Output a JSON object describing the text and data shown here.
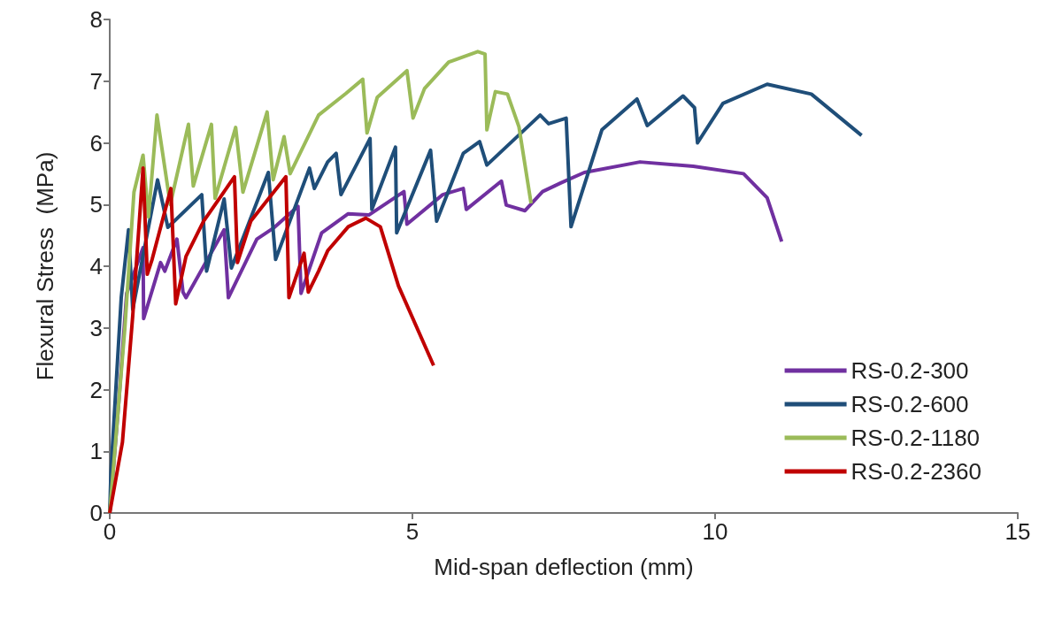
{
  "chart_data": {
    "type": "line",
    "xlabel": "Mid-span deflection (mm)",
    "ylabel": "Flexural Stress  (MPa)",
    "xlim": [
      0,
      15
    ],
    "xticks": [
      0,
      5,
      10,
      15
    ],
    "ylim": [
      0,
      8
    ],
    "yticks": [
      0,
      1,
      2,
      3,
      4,
      5,
      6,
      7,
      8
    ],
    "grid": false,
    "legend": "bottom right",
    "marker": "none",
    "line_style": "solid",
    "series": [
      {
        "name": "RS-0.2-300",
        "color": "#7030a0",
        "x": [
          0,
          0.15,
          0.28,
          0.55,
          0.56,
          0.84,
          0.91,
          1.11,
          1.21,
          1.26,
          1.89,
          1.96,
          2.43,
          2.72,
          3.11,
          3.16,
          3.5,
          3.94,
          4.28,
          4.86,
          4.91,
          5.5,
          5.84,
          5.89,
          6.47,
          6.55,
          6.86,
          7.15,
          7.45,
          7.84,
          8.76,
          9.64,
          10.47,
          10.86,
          11.1
        ],
        "values": [
          0,
          1.8,
          3.56,
          4.3,
          3.15,
          4.06,
          3.92,
          4.44,
          3.58,
          3.49,
          4.59,
          3.49,
          4.44,
          4.63,
          4.97,
          3.56,
          4.54,
          4.85,
          4.83,
          5.21,
          4.68,
          5.16,
          5.26,
          4.92,
          5.38,
          4.99,
          4.9,
          5.21,
          5.35,
          5.52,
          5.69,
          5.62,
          5.5,
          5.11,
          4.4
        ]
      },
      {
        "name": "RS-0.2-600",
        "color": "#1f4e79",
        "x": [
          0,
          0.02,
          0.19,
          0.31,
          0.38,
          0.79,
          0.96,
          1.52,
          1.6,
          1.89,
          2.01,
          2.62,
          2.74,
          3.3,
          3.38,
          3.6,
          3.74,
          3.82,
          4.3,
          4.33,
          4.72,
          4.74,
          5.3,
          5.4,
          5.84,
          6.11,
          6.23,
          7.11,
          7.25,
          7.54,
          7.62,
          8.13,
          8.71,
          8.88,
          9.47,
          9.66,
          9.71,
          10.13,
          10.86,
          11.59,
          12.42
        ],
        "values": [
          0,
          0.67,
          3.49,
          4.59,
          3.3,
          5.4,
          4.63,
          5.16,
          3.92,
          5.09,
          3.97,
          5.52,
          4.11,
          5.59,
          5.26,
          5.69,
          5.83,
          5.16,
          6.07,
          4.92,
          5.93,
          4.54,
          5.88,
          4.73,
          5.83,
          6.02,
          5.64,
          6.45,
          6.31,
          6.4,
          4.64,
          6.21,
          6.71,
          6.28,
          6.76,
          6.57,
          6,
          6.64,
          6.95,
          6.79,
          6.12
        ]
      },
      {
        "name": "RS-0.2-1180",
        "color": "#9bbb59",
        "x": [
          0,
          0.25,
          0.4,
          0.55,
          0.64,
          0.78,
          1.0,
          1.3,
          1.38,
          1.68,
          1.74,
          2.08,
          2.2,
          2.6,
          2.7,
          2.88,
          2.98,
          3.45,
          3.9,
          4.18,
          4.25,
          4.42,
          4.91,
          5.01,
          5.2,
          5.6,
          6.08,
          6.2,
          6.23,
          6.37,
          6.57,
          6.76,
          6.96
        ],
        "values": [
          0,
          3,
          5.2,
          5.8,
          4.8,
          6.45,
          5,
          6.3,
          5.3,
          6.3,
          5.1,
          6.25,
          5.2,
          6.5,
          5.4,
          6.1,
          5.5,
          6.45,
          6.8,
          7.03,
          6.16,
          6.74,
          7.17,
          6.4,
          6.88,
          7.31,
          7.48,
          7.44,
          6.21,
          6.83,
          6.79,
          6.26,
          5.02
        ]
      },
      {
        "name": "RS-0.2-2360",
        "color": "#c00000",
        "x": [
          0,
          0.21,
          0.38,
          0.55,
          0.62,
          0.7,
          1.01,
          1.09,
          1.26,
          1.55,
          2.06,
          2.11,
          2.33,
          2.91,
          2.96,
          3.21,
          3.28,
          3.45,
          3.6,
          3.94,
          4.23,
          4.47,
          4.77,
          5.35
        ],
        "values": [
          0,
          1.15,
          3.2,
          5.59,
          3.87,
          4.11,
          5.26,
          3.39,
          4.16,
          4.73,
          5.45,
          4.06,
          4.73,
          5.45,
          3.49,
          4.21,
          3.58,
          3.92,
          4.25,
          4.64,
          4.78,
          4.64,
          3.68,
          2.39
        ]
      }
    ]
  }
}
